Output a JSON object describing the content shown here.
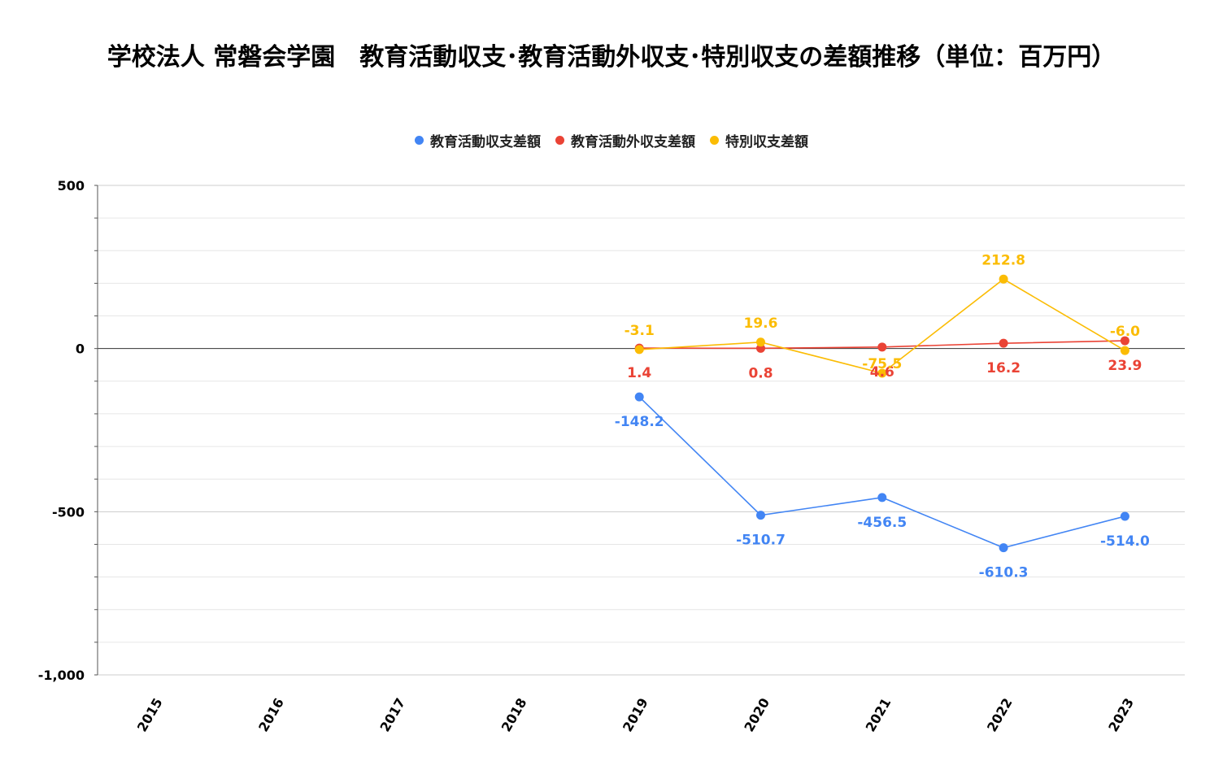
{
  "chart_data": {
    "type": "line",
    "title": "学校法人 常磐会学園　教育活動収支･教育活動外収支･特別収支の差額推移（単位：百万円）",
    "categories": [
      "2015",
      "2016",
      "2017",
      "2018",
      "2019",
      "2020",
      "2021",
      "2022",
      "2023"
    ],
    "ylim": [
      -1000,
      500
    ],
    "y_ticks": [
      500,
      0,
      -500,
      -1000
    ],
    "y_tick_labels": [
      "500",
      "0",
      "-500",
      "-1,000"
    ],
    "grid": true,
    "legend_position": "top",
    "series": [
      {
        "name": "教育活動収支差額",
        "color": "#4285F4",
        "values": [
          null,
          null,
          null,
          null,
          -148.2,
          -510.7,
          -456.5,
          -610.3,
          -514.0
        ],
        "labels": [
          "",
          "",
          "",
          "",
          "-148.2",
          "-510.7",
          "-456.5",
          "-610.3",
          "-514.0"
        ]
      },
      {
        "name": "教育活動外収支差額",
        "color": "#EA4335",
        "values": [
          null,
          null,
          null,
          null,
          1.4,
          0.8,
          4.6,
          16.2,
          23.9
        ],
        "labels": [
          "",
          "",
          "",
          "",
          "1.4",
          "0.8",
          "4.6",
          "16.2",
          "23.9"
        ]
      },
      {
        "name": "特別収支差額",
        "color": "#FBBC04",
        "values": [
          null,
          null,
          null,
          null,
          -3.1,
          19.6,
          -75.5,
          212.8,
          -6.0
        ],
        "labels": [
          "",
          "",
          "",
          "",
          "-3.1",
          "19.6",
          "-75.5",
          "212.8",
          "-6.0"
        ]
      }
    ]
  }
}
